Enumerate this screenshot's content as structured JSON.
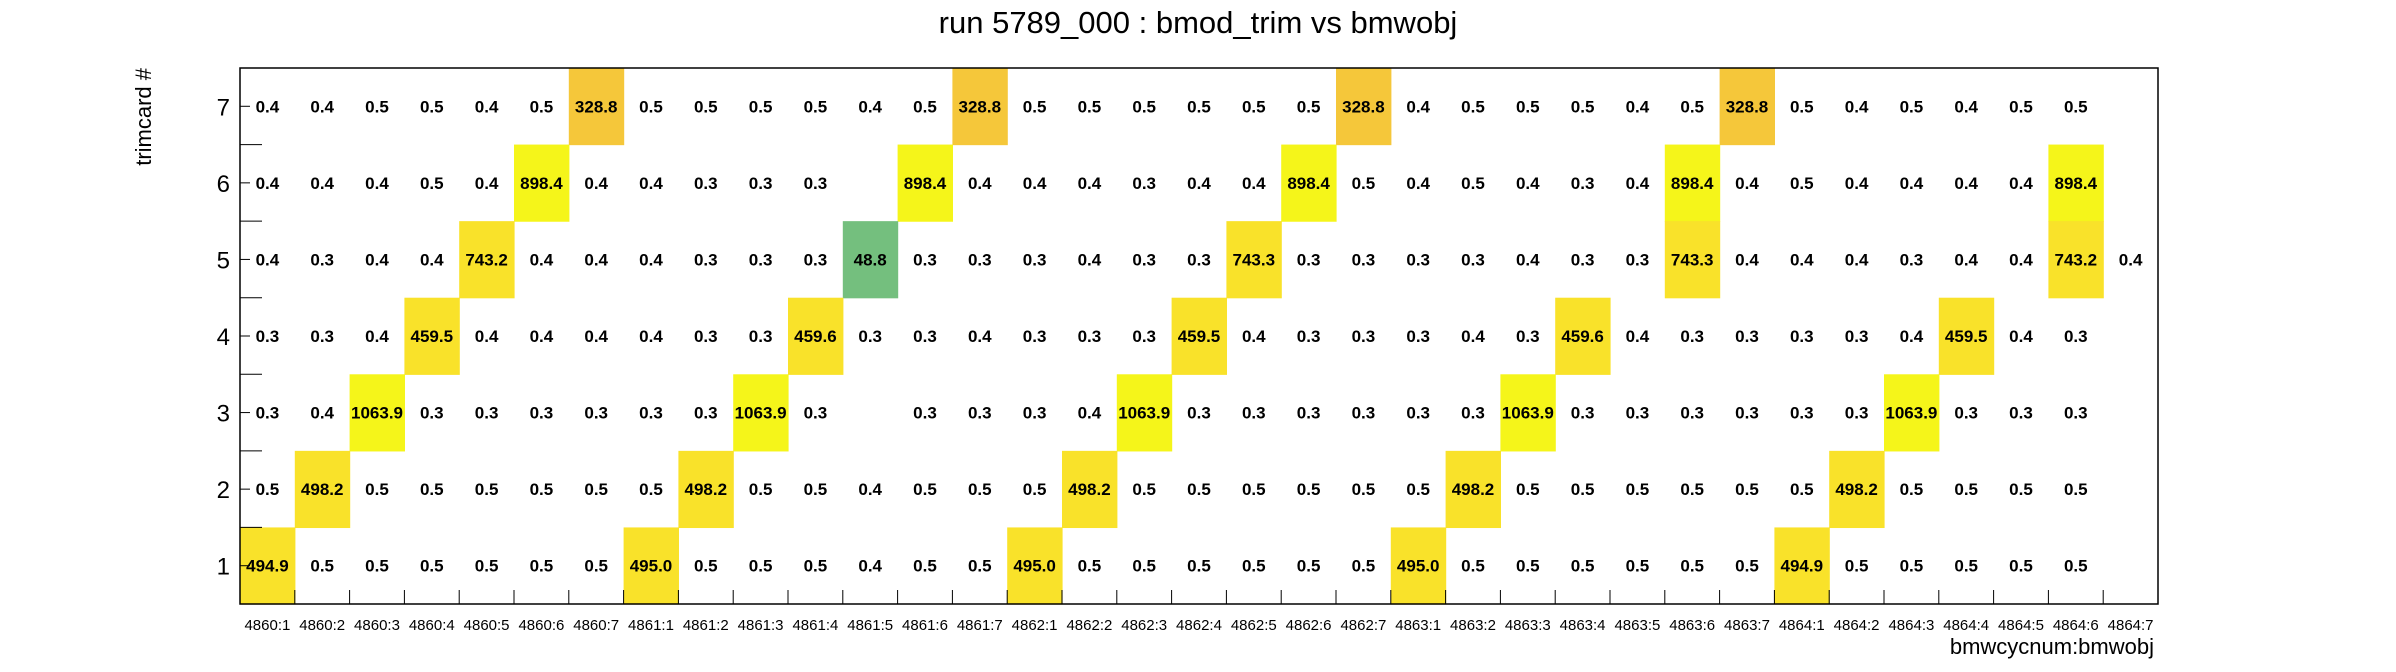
{
  "chart_data": {
    "type": "heatmap",
    "title": "run 5789_000 : bmod_trim vs bmwobj",
    "xlabel": "bmwcycnum:bmwobj",
    "ylabel": "trimcard #",
    "x_categories": [
      "4860:1",
      "4860:2",
      "4860:3",
      "4860:4",
      "4860:5",
      "4860:6",
      "4860:7",
      "4861:1",
      "4861:2",
      "4861:3",
      "4861:4",
      "4861:5",
      "4861:6",
      "4861:7",
      "4862:1",
      "4862:2",
      "4862:3",
      "4862:4",
      "4862:5",
      "4862:6",
      "4862:7",
      "4863:1",
      "4863:2",
      "4863:3",
      "4863:4",
      "4863:5",
      "4863:6",
      "4863:7",
      "4864:1",
      "4864:2",
      "4864:3",
      "4864:4",
      "4864:5",
      "4864:6",
      "4864:7"
    ],
    "y_categories": [
      "1",
      "2",
      "3",
      "4",
      "5",
      "6",
      "7"
    ],
    "rows": [
      {
        "y": "7",
        "values": [
          0.4,
          0.4,
          0.5,
          0.5,
          0.4,
          0.5,
          328.8,
          0.5,
          0.5,
          0.5,
          0.5,
          0.4,
          0.5,
          328.8,
          0.5,
          0.5,
          0.5,
          0.5,
          0.5,
          0.5,
          328.8,
          0.4,
          0.5,
          0.5,
          0.5,
          0.4,
          0.5,
          328.8,
          0.5,
          0.4,
          0.5,
          0.4,
          0.5,
          0.5,
          null
        ]
      },
      {
        "y": "6",
        "values": [
          0.4,
          0.4,
          0.4,
          0.5,
          0.4,
          898.4,
          0.4,
          0.4,
          0.3,
          0.3,
          0.3,
          null,
          898.4,
          0.4,
          0.4,
          0.4,
          0.3,
          0.4,
          0.4,
          898.4,
          0.5,
          0.4,
          0.5,
          0.4,
          0.3,
          0.4,
          898.4,
          0.4,
          0.5,
          0.4,
          0.4,
          0.4,
          0.4,
          898.4,
          null
        ]
      },
      {
        "y": "5",
        "values": [
          0.4,
          0.3,
          0.4,
          0.4,
          743.2,
          0.4,
          0.4,
          0.4,
          0.3,
          0.3,
          0.3,
          48.8,
          0.3,
          0.3,
          0.3,
          0.4,
          0.3,
          0.3,
          743.3,
          0.3,
          0.3,
          0.3,
          0.3,
          0.4,
          0.3,
          0.3,
          743.3,
          0.4,
          0.4,
          0.4,
          0.3,
          0.4,
          0.4,
          743.2,
          0.4
        ]
      },
      {
        "y": "4",
        "values": [
          0.3,
          0.3,
          0.4,
          459.5,
          0.4,
          0.4,
          0.4,
          0.4,
          0.3,
          0.3,
          459.6,
          0.3,
          0.3,
          0.4,
          0.3,
          0.3,
          0.3,
          459.5,
          0.4,
          0.3,
          0.3,
          0.3,
          0.4,
          0.3,
          459.6,
          0.4,
          0.3,
          0.3,
          0.3,
          0.3,
          0.4,
          459.5,
          0.4,
          0.3,
          null
        ]
      },
      {
        "y": "3",
        "values": [
          0.3,
          0.4,
          1063.9,
          0.3,
          0.3,
          0.3,
          0.3,
          0.3,
          0.3,
          1063.9,
          0.3,
          null,
          0.3,
          0.3,
          0.3,
          0.4,
          1063.9,
          0.3,
          0.3,
          0.3,
          0.3,
          0.3,
          0.3,
          1063.9,
          0.3,
          0.3,
          0.3,
          0.3,
          0.3,
          0.3,
          1063.9,
          0.3,
          0.3,
          0.3,
          null
        ]
      },
      {
        "y": "2",
        "values": [
          0.5,
          498.2,
          0.5,
          0.5,
          0.5,
          0.5,
          0.5,
          0.5,
          498.2,
          0.5,
          0.5,
          0.4,
          0.5,
          0.5,
          0.5,
          498.2,
          0.5,
          0.5,
          0.5,
          0.5,
          0.5,
          0.5,
          498.2,
          0.5,
          0.5,
          0.5,
          0.5,
          0.5,
          0.5,
          498.2,
          0.5,
          0.5,
          0.5,
          0.5,
          null
        ]
      },
      {
        "y": "1",
        "values": [
          494.9,
          0.5,
          0.5,
          0.5,
          0.5,
          0.5,
          0.5,
          495.0,
          0.5,
          0.5,
          0.5,
          0.4,
          0.5,
          0.5,
          495.0,
          0.5,
          0.5,
          0.5,
          0.5,
          0.5,
          0.5,
          495.0,
          0.5,
          0.5,
          0.5,
          0.5,
          0.5,
          0.5,
          494.9,
          0.5,
          0.5,
          0.5,
          0.5,
          0.5,
          null
        ]
      }
    ],
    "colors": {
      "very_high": "#f5f51a",
      "high": "#f9e22a",
      "medium": "#f5c73a",
      "low": "#74bf7e"
    },
    "grid": false,
    "legend": "none"
  }
}
